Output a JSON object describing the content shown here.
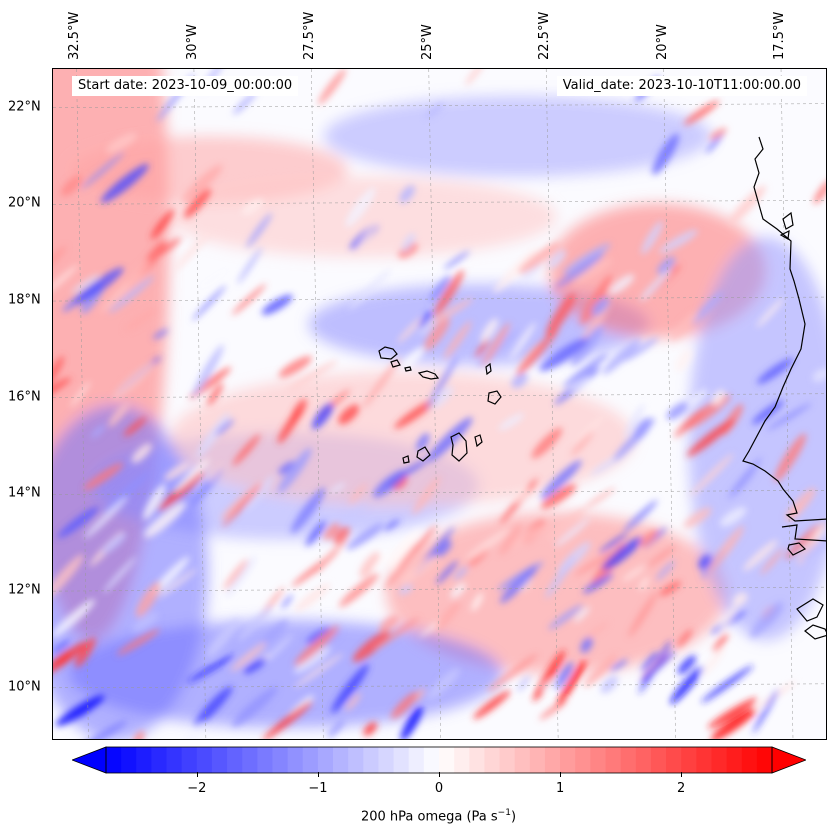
{
  "map": {
    "start_date": "Start date: 2023-10-09_00:00:00",
    "valid_date": "Valid_date: 2023-10-10T11:00:00.00",
    "lon_range": [
      -33.0,
      -16.5
    ],
    "lat_range": [
      8.9,
      22.8
    ],
    "lon_labels": [
      {
        "lon": -32.5,
        "text": "32.5°W"
      },
      {
        "lon": -30.0,
        "text": "30°W"
      },
      {
        "lon": -27.5,
        "text": "27.5°W"
      },
      {
        "lon": -25.0,
        "text": "25°W"
      },
      {
        "lon": -22.5,
        "text": "22.5°W"
      },
      {
        "lon": -20.0,
        "text": "20°W"
      },
      {
        "lon": -17.5,
        "text": "17.5°W"
      }
    ],
    "lat_labels": [
      {
        "lat": 22,
        "text": "22°N"
      },
      {
        "lat": 20,
        "text": "20°N"
      },
      {
        "lat": 18,
        "text": "18°N"
      },
      {
        "lat": 16,
        "text": "16°N"
      },
      {
        "lat": 14,
        "text": "14°N"
      },
      {
        "lat": 12,
        "text": "12°N"
      },
      {
        "lat": 10,
        "text": "10°N"
      }
    ]
  },
  "colorbar": {
    "label_prefix": "200 hPa omega (Pa s",
    "label_exp": "−1",
    "label_suffix": ")",
    "vmin": -2.75,
    "vmax": 2.75,
    "ticks": [
      {
        "value": -2,
        "text": "−2"
      },
      {
        "value": -1,
        "text": "−1"
      },
      {
        "value": 0,
        "text": "0"
      },
      {
        "value": 1,
        "text": "1"
      },
      {
        "value": 2,
        "text": "2"
      }
    ],
    "low_color": "#0000ff",
    "mid_color": "#ffffff",
    "high_color": "#ff0000"
  }
}
